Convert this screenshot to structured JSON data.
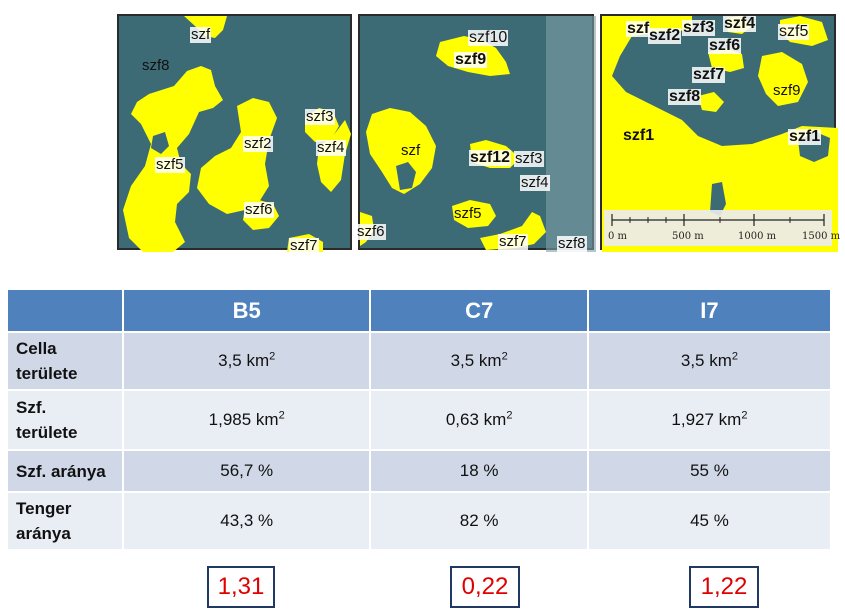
{
  "maps": {
    "b5": {
      "labels": [
        "szf",
        "szf8",
        "szf3",
        "szf2",
        "szf4",
        "szf5",
        "szf6",
        "szf7"
      ]
    },
    "c7": {
      "labels": [
        "szf10",
        "szf9",
        "szf",
        "szf12",
        "szf3",
        "szf4",
        "szf5",
        "szf6",
        "szf7",
        "szf8"
      ]
    },
    "i7": {
      "labels": [
        "szf",
        "szf2",
        "szf3",
        "szf4",
        "szf5",
        "szf6",
        "szf7",
        "szf8",
        "szf9",
        "szf1",
        "szf1"
      ],
      "scalebar": [
        "0 m",
        "500 m",
        "1000 m",
        "1500 m"
      ]
    }
  },
  "table": {
    "headers": [
      "",
      "B5",
      "C7",
      "I7"
    ],
    "rows": [
      {
        "label_line1": "Cella",
        "label_line2": "területe",
        "values": [
          "3,5 km",
          "3,5 km",
          "3,5 km"
        ],
        "sup": "2"
      },
      {
        "label_line1": "Szf.",
        "label_line2": "területe",
        "values": [
          "1,985 km",
          "0,63 km",
          "1,927 km"
        ],
        "sup": "2"
      },
      {
        "label_line1": "Szf. aránya",
        "label_line2": "",
        "values": [
          "56,7 %",
          "18 %",
          "55 %"
        ],
        "sup": ""
      },
      {
        "label_line1": "Tenger",
        "label_line2": "aránya",
        "values": [
          "43,3 %",
          "82 %",
          "45 %"
        ],
        "sup": ""
      }
    ]
  },
  "ratios": [
    "1,31",
    "0,22",
    "1,22"
  ],
  "colors": {
    "header_bg": "#4f81bd",
    "row_odd": "#d0d8e8",
    "row_even": "#e9edf4",
    "ratio_text": "#e00000",
    "ratio_border": "#1f3864",
    "land": "#ffff00",
    "sea": "#3d6b75"
  }
}
